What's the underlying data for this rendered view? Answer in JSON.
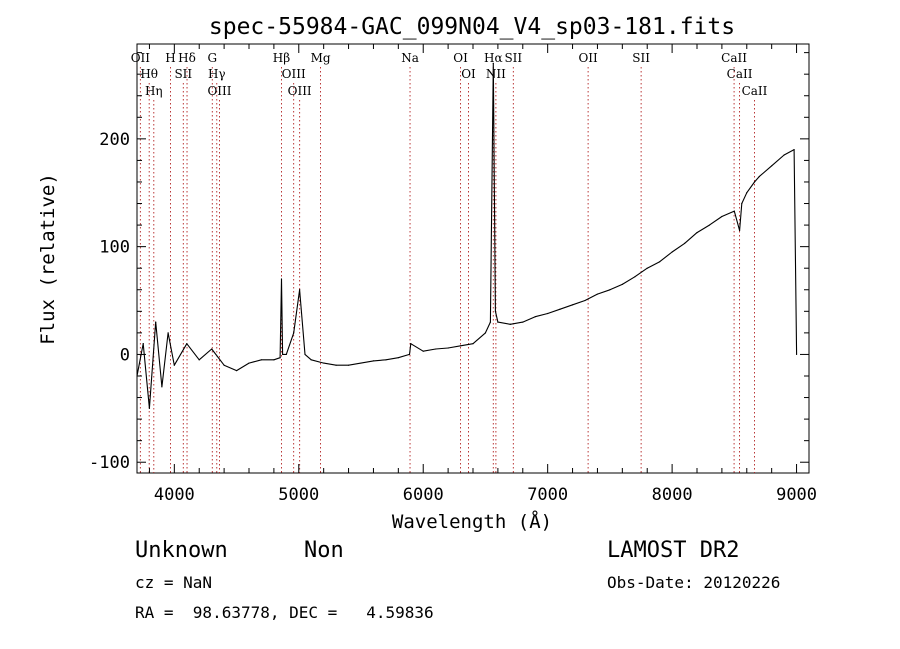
{
  "chart_data": {
    "type": "line",
    "title": "spec-55984-GAC_099N04_V4_sp03-181.fits",
    "xlabel": "Wavelength (Å)",
    "ylabel": "Flux (relative)",
    "xlim": [
      3700,
      9100
    ],
    "ylim": [
      -110,
      288
    ],
    "xticks": [
      4000,
      5000,
      6000,
      7000,
      8000,
      9000
    ],
    "yticks": [
      -100,
      0,
      100,
      200
    ],
    "grid": false,
    "series": [
      {
        "color": "#000000",
        "x": [
          3700,
          3750,
          3800,
          3850,
          3900,
          3950,
          4000,
          4100,
          4200,
          4300,
          4400,
          4500,
          4600,
          4700,
          4800,
          4850,
          4861,
          4870,
          4900,
          4959,
          5007,
          5050,
          5100,
          5200,
          5300,
          5400,
          5500,
          5600,
          5700,
          5800,
          5890,
          5900,
          6000,
          6100,
          6200,
          6300,
          6400,
          6500,
          6540,
          6563,
          6580,
          6600,
          6700,
          6800,
          6900,
          7000,
          7100,
          7200,
          7300,
          7400,
          7500,
          7600,
          7700,
          7800,
          7900,
          8000,
          8100,
          8200,
          8300,
          8400,
          8500,
          8542,
          8560,
          8600,
          8662,
          8700,
          8800,
          8900,
          8980,
          9000
        ],
        "y": [
          -20,
          10,
          -50,
          30,
          -30,
          20,
          -10,
          10,
          -5,
          5,
          -10,
          -15,
          -8,
          -5,
          -5,
          -3,
          70,
          0,
          0,
          20,
          60,
          0,
          -5,
          -8,
          -10,
          -10,
          -8,
          -6,
          -5,
          -3,
          0,
          10,
          3,
          5,
          6,
          8,
          10,
          20,
          30,
          270,
          40,
          30,
          28,
          30,
          35,
          38,
          42,
          46,
          50,
          56,
          60,
          65,
          72,
          80,
          86,
          95,
          103,
          113,
          120,
          128,
          133,
          115,
          140,
          150,
          160,
          165,
          175,
          185,
          190,
          0
        ]
      }
    ],
    "lines": [
      {
        "label": "Hθ",
        "x": 3798
      },
      {
        "label": "OII",
        "x": 3727
      },
      {
        "label": "Hη",
        "x": 3835
      },
      {
        "label": "H",
        "x": 3969
      },
      {
        "label": "SII",
        "x": 4072
      },
      {
        "label": "Hδ",
        "x": 4102
      },
      {
        "label": "Hγ",
        "x": 4341
      },
      {
        "label": "G",
        "x": 4305
      },
      {
        "label": "OIII",
        "x": 4363
      },
      {
        "label": "OIII",
        "x": 4959
      },
      {
        "label": "Hβ",
        "x": 4861
      },
      {
        "label": "OIII",
        "x": 5007
      },
      {
        "label": "Mg",
        "x": 5175
      },
      {
        "label": "Na",
        "x": 5894
      },
      {
        "label": "OI",
        "x": 6364
      },
      {
        "label": "OI",
        "x": 6300
      },
      {
        "label": "Hα",
        "x": 6563
      },
      {
        "label": "SII",
        "x": 6724
      },
      {
        "label": "NII",
        "x": 6584
      },
      {
        "label": "OII",
        "x": 7325
      },
      {
        "label": "SII",
        "x": 7751
      },
      {
        "label": "CaII",
        "x": 8662
      },
      {
        "label": "CaII",
        "x": 8542
      },
      {
        "label": "CaII",
        "x": 8498
      }
    ]
  },
  "info": {
    "object": "Unknown",
    "subclass": "Non",
    "survey": "LAMOST DR2",
    "cz": "cz = NaN",
    "obs_date": "Obs-Date: 20120226",
    "coords": "RA =  98.63778, DEC =   4.59836"
  }
}
